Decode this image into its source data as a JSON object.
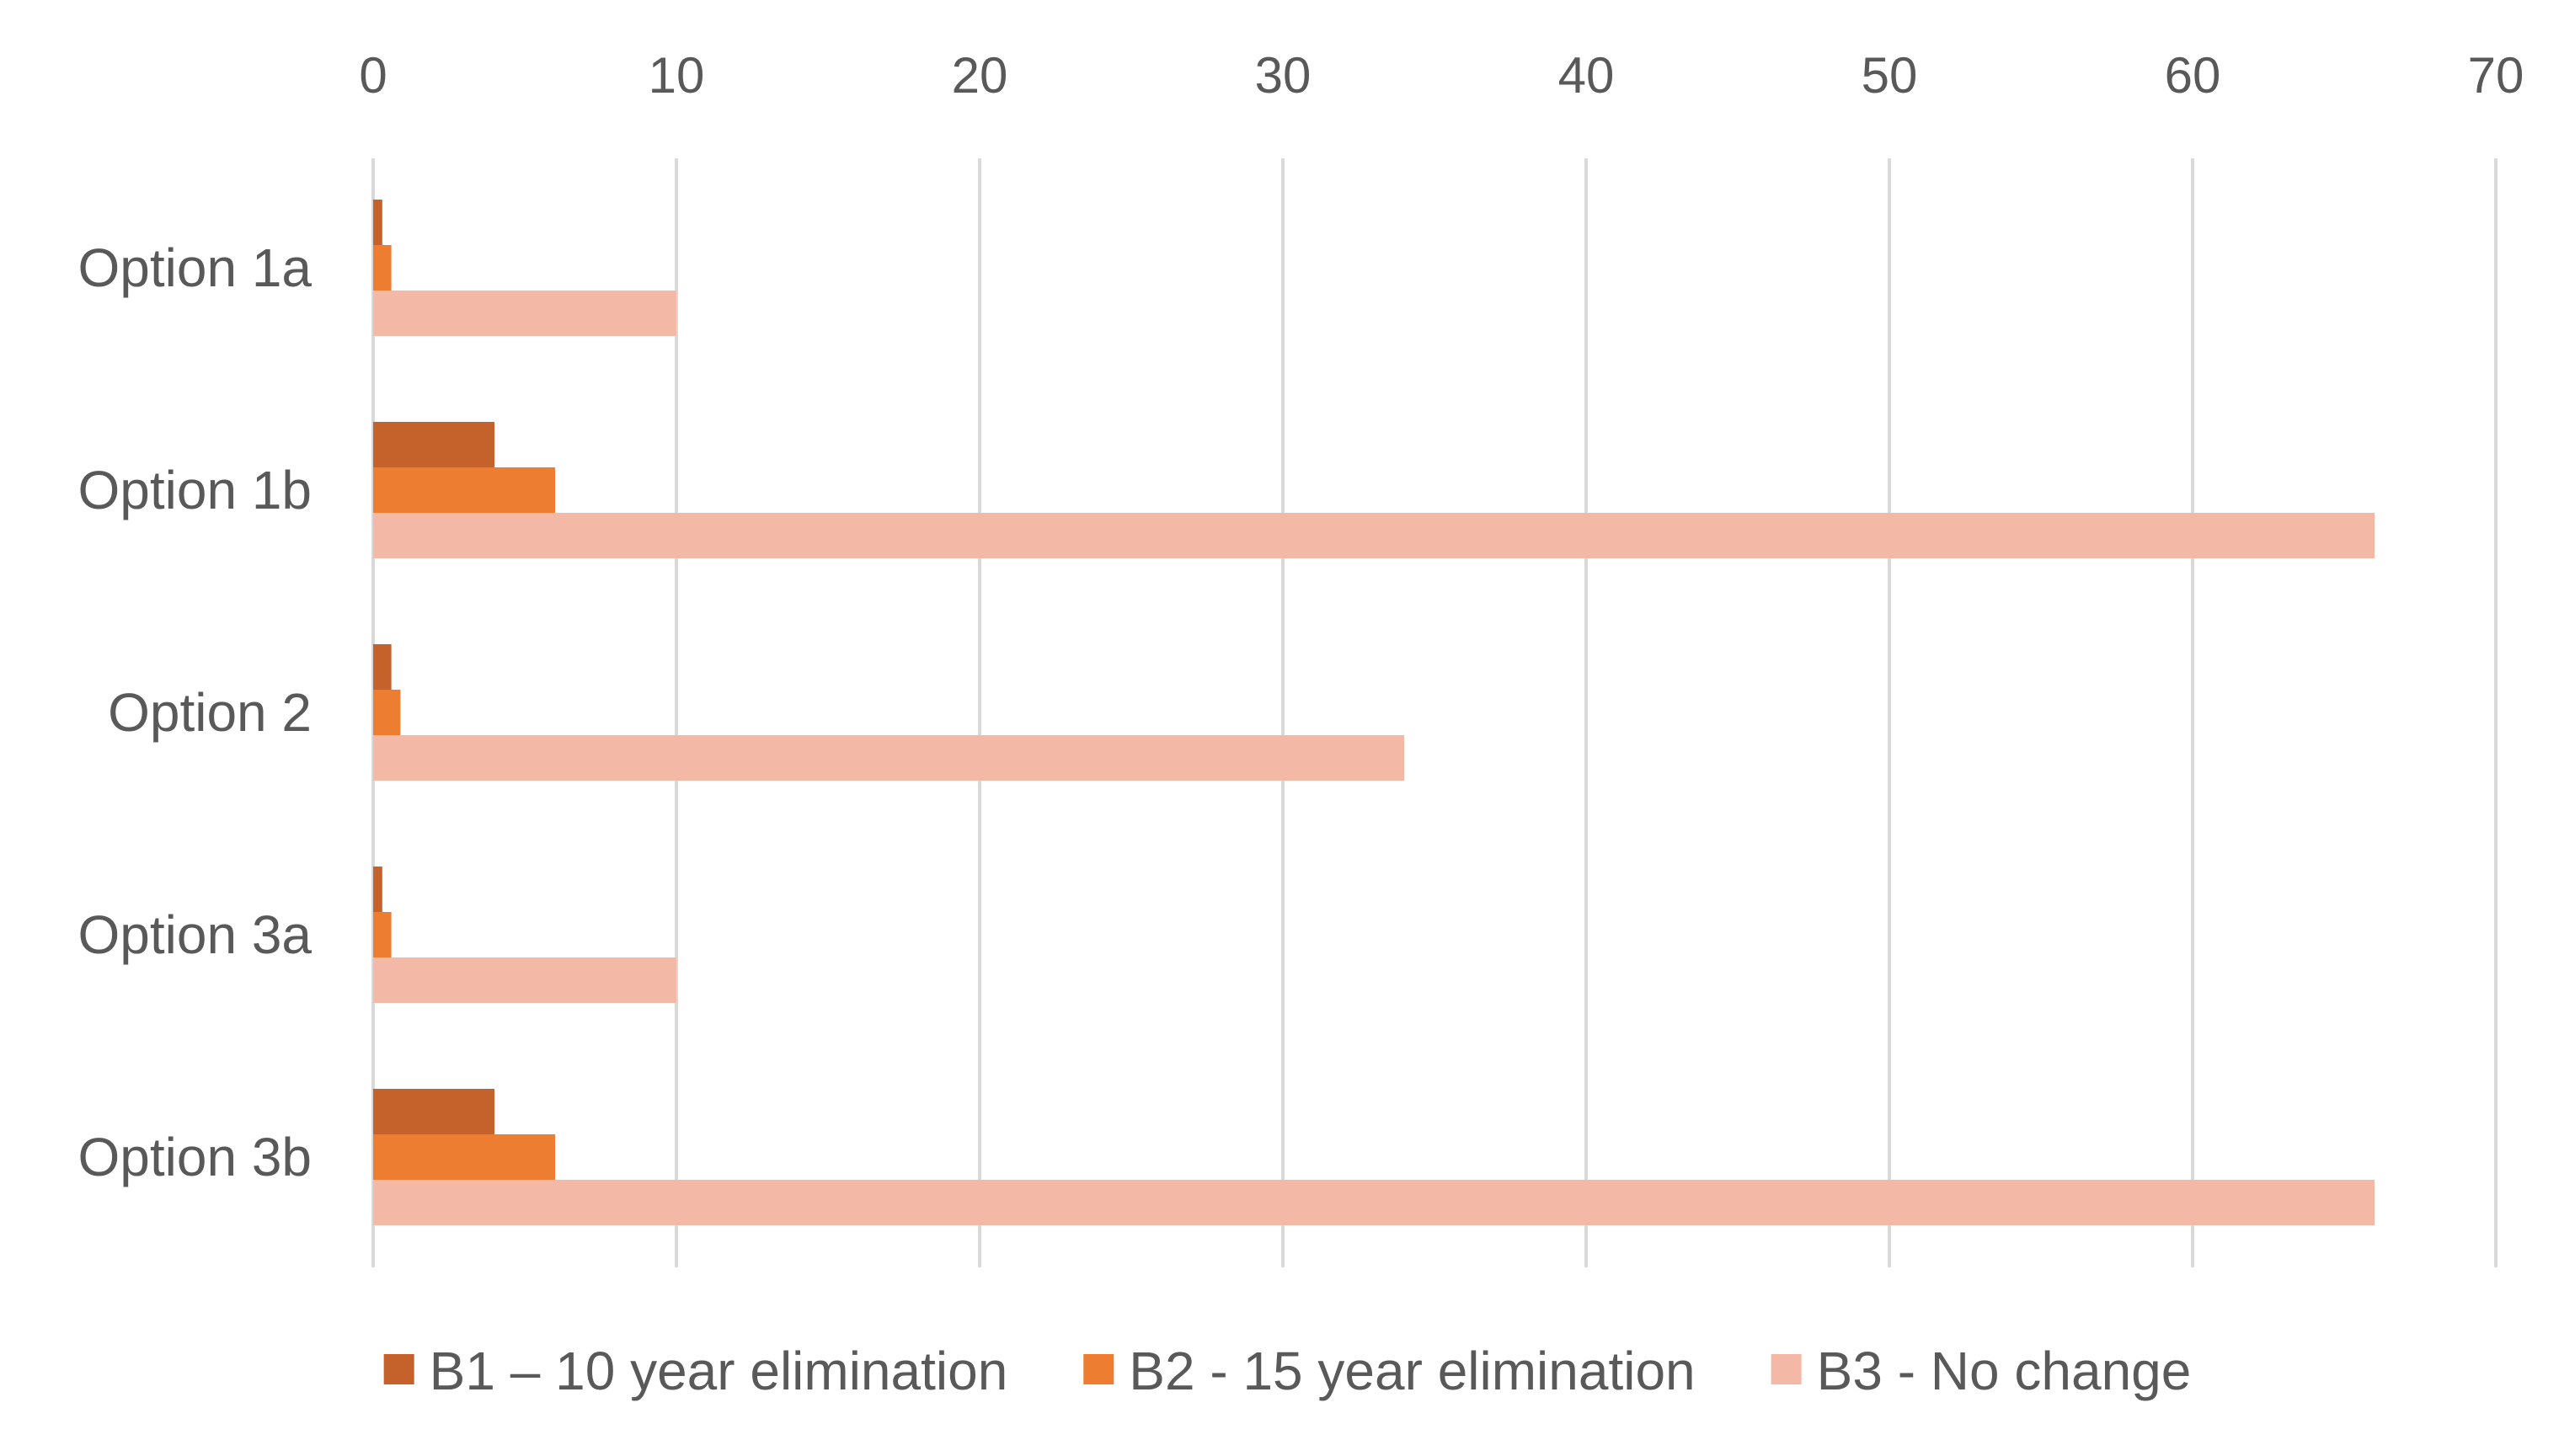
{
  "chart_data": {
    "type": "bar",
    "orientation": "horizontal",
    "categories": [
      "Option 1a",
      "Option 1b",
      "Option 2",
      "Option 3a",
      "Option 3b"
    ],
    "series": [
      {
        "name": "B1 – 10 year elimination",
        "values": [
          0.3,
          4,
          0.6,
          0.3,
          4
        ],
        "color": "#c5612a"
      },
      {
        "name": "B2 - 15 year elimination",
        "values": [
          0.6,
          6,
          0.9,
          0.6,
          6
        ],
        "color": "#ed7d31"
      },
      {
        "name": "B3 - No change",
        "values": [
          10,
          66,
          34,
          10,
          66
        ],
        "color": "#f4b9a6"
      }
    ],
    "xlim": [
      0,
      70
    ],
    "x_ticks": [
      "0",
      "10",
      "20",
      "30",
      "40",
      "50",
      "60",
      "70"
    ],
    "axis_position": "top",
    "grid": true,
    "legend_position": "bottom",
    "title": "",
    "xlabel": "",
    "ylabel": ""
  }
}
